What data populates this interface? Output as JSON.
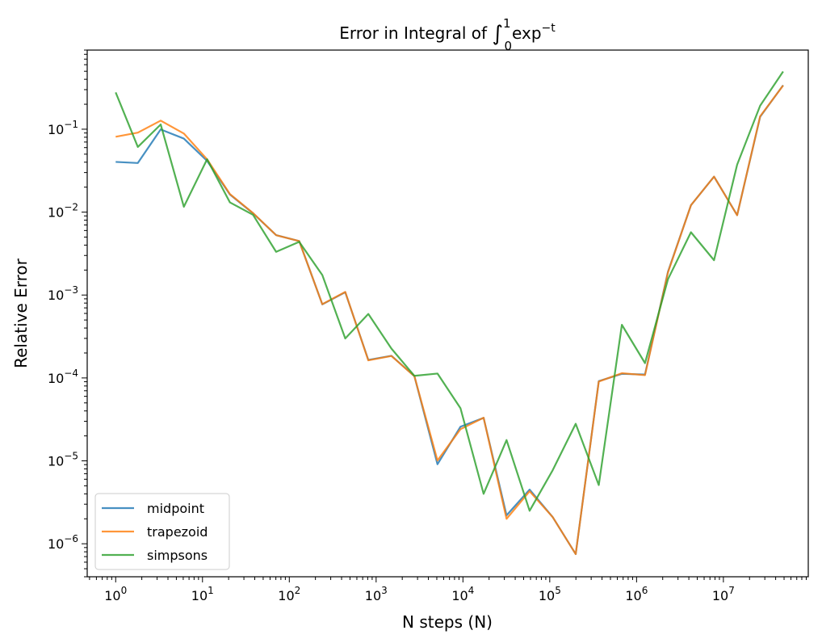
{
  "chart_data": {
    "type": "line",
    "title_parts": {
      "prefix": "Error in Integral of ",
      "integral": "∫",
      "upper": "1",
      "lower": "0",
      "func": "exp",
      "exponent": "−t"
    },
    "xlabel": "N steps (N)",
    "ylabel": "Relative Error",
    "xscale": "log",
    "yscale": "log",
    "xlim": [
      0.47,
      95000000
    ],
    "ylim": [
      4e-07,
      0.9
    ],
    "grid": false,
    "legend_position": "lower-left",
    "x_ticks": [
      {
        "base": "10",
        "exp": "0",
        "value": 1
      },
      {
        "base": "10",
        "exp": "1",
        "value": 10
      },
      {
        "base": "10",
        "exp": "2",
        "value": 100
      },
      {
        "base": "10",
        "exp": "3",
        "value": 1000
      },
      {
        "base": "10",
        "exp": "4",
        "value": 10000
      },
      {
        "base": "10",
        "exp": "5",
        "value": 100000
      },
      {
        "base": "10",
        "exp": "6",
        "value": 1000000
      },
      {
        "base": "10",
        "exp": "7",
        "value": 10000000
      }
    ],
    "y_ticks": [
      {
        "base": "10",
        "exp": "−1",
        "value": 0.1
      },
      {
        "base": "10",
        "exp": "−2",
        "value": 0.01
      },
      {
        "base": "10",
        "exp": "−3",
        "value": 0.001
      },
      {
        "base": "10",
        "exp": "−4",
        "value": 0.0001
      },
      {
        "base": "10",
        "exp": "−5",
        "value": 1e-05
      },
      {
        "base": "10",
        "exp": "−6",
        "value": 1e-06
      }
    ],
    "x": [
      1,
      1.8,
      3.3,
      6.1,
      11.3,
      20.7,
      38.2,
      70.5,
      130,
      240,
      441,
      813,
      1500,
      2760,
      5090,
      9370,
      17300,
      31800,
      58600,
      108000,
      199000,
      367000,
      677000,
      1250000,
      2300000,
      4230000,
      7800000,
      14400000,
      26500000,
      48800000
    ],
    "series": [
      {
        "name": "midpoint",
        "color": "#1f77b4",
        "values": [
          0.0403,
          0.0391,
          0.0993,
          0.0771,
          0.0415,
          0.0163,
          0.00968,
          0.00528,
          0.00448,
          0.000772,
          0.00108,
          0.000165,
          0.000185,
          0.000105,
          9.1e-06,
          2.58e-05,
          3.3e-05,
          2.2e-06,
          4.5e-06,
          2.1e-06,
          7.5e-07,
          9.15e-05,
          0.000112,
          0.00011,
          0.00191,
          0.0121,
          0.0268,
          0.00919,
          0.141,
          0.339
        ]
      },
      {
        "name": "trapezoid",
        "color": "#ff7f0e",
        "values": [
          0.0811,
          0.0909,
          0.127,
          0.0887,
          0.0433,
          0.0165,
          0.00975,
          0.00527,
          0.00447,
          0.000775,
          0.00109,
          0.000163,
          0.000184,
          0.000105,
          1.01e-05,
          2.41e-05,
          3.31e-05,
          2e-06,
          4.3e-06,
          2.1e-06,
          7.5e-07,
          9.05e-05,
          0.000114,
          0.000108,
          0.00188,
          0.0121,
          0.0268,
          0.00917,
          0.143,
          0.337
        ]
      },
      {
        "name": "simpsons",
        "color": "#2ca02c",
        "values": [
          0.278,
          0.0611,
          0.114,
          0.0116,
          0.0434,
          0.0131,
          0.00928,
          0.00332,
          0.00438,
          0.00174,
          0.000299,
          0.000591,
          0.000226,
          0.000106,
          0.000113,
          4.31e-05,
          4e-06,
          1.78e-05,
          2.5e-06,
          7.7e-06,
          2.8e-05,
          5.1e-06,
          0.000437,
          0.000151,
          0.00155,
          0.00572,
          0.00263,
          0.0373,
          0.192,
          0.497
        ]
      }
    ]
  }
}
